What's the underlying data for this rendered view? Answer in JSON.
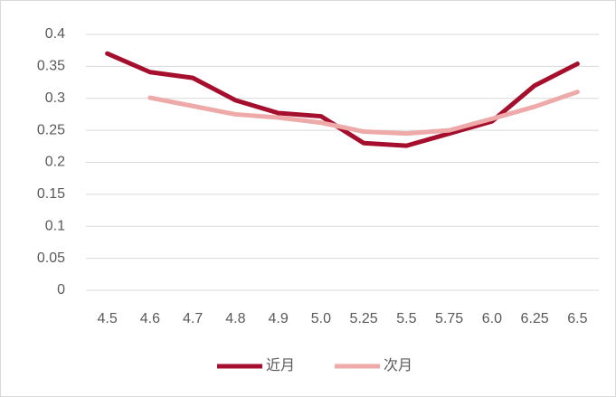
{
  "chart_data": {
    "type": "line",
    "categories": [
      "4.5",
      "4.6",
      "4.7",
      "4.8",
      "4.9",
      "5.0",
      "5.25",
      "5.5",
      "5.75",
      "6.0",
      "6.25",
      "6.5"
    ],
    "series": [
      {
        "name": "近月",
        "color": "#a50f2d",
        "values": [
          0.37,
          0.341,
          0.332,
          0.297,
          0.277,
          0.272,
          0.23,
          0.226,
          0.245,
          0.264,
          0.32,
          0.354
        ]
      },
      {
        "name": "次月",
        "color": "#eea9a9",
        "values": [
          null,
          0.301,
          0.288,
          0.275,
          0.27,
          0.262,
          0.248,
          0.245,
          0.25,
          0.268,
          0.287,
          0.31
        ]
      }
    ],
    "ylim": [
      0,
      0.4
    ],
    "yticks": [
      0,
      0.05,
      0.1,
      0.15,
      0.2,
      0.25,
      0.3,
      0.35,
      0.4
    ],
    "grid": true,
    "legend": "bottom"
  }
}
